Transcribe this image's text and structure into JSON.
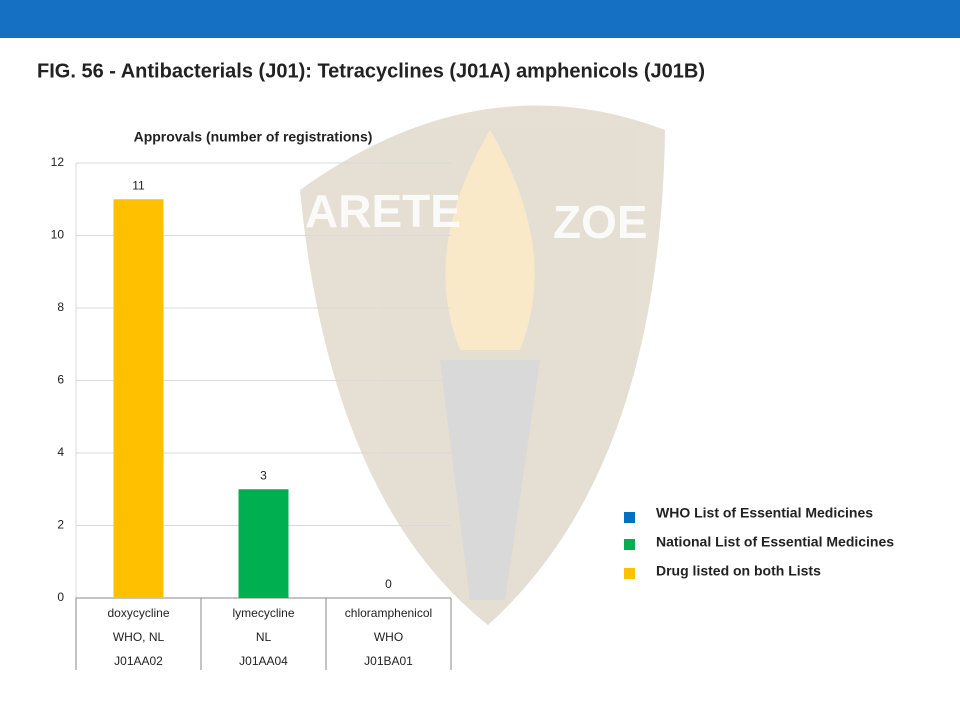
{
  "slide_title": "FIG. 56 - Antibacterials (J01): Tetracyclines (J01A) amphenicols (J01B)",
  "watermark": [
    "ARETE",
    "ZOE"
  ],
  "chart_data": {
    "type": "bar",
    "title": "Approvals (number of registrations)",
    "categories": [
      "doxycycline",
      "lymecycline",
      "chloramphenicol"
    ],
    "category_rows": [
      [
        "WHO, NL",
        "NL",
        "WHO"
      ],
      [
        "J01AA02",
        "J01AA04",
        "J01BA01"
      ]
    ],
    "values": [
      11,
      3,
      0
    ],
    "colors": [
      "#FFC000",
      "#00B050",
      "#0070C0"
    ],
    "ylim": [
      0,
      12
    ],
    "yticks": [
      0,
      2,
      4,
      6,
      8,
      10,
      12
    ],
    "grid": true,
    "legend": [
      {
        "name": "WHO List of Essential Medicines",
        "color": "#0070C0"
      },
      {
        "name": "National List of Essential Medicines",
        "color": "#00B050"
      },
      {
        "name": "Drug listed on both Lists",
        "color": "#FFC000"
      }
    ]
  }
}
